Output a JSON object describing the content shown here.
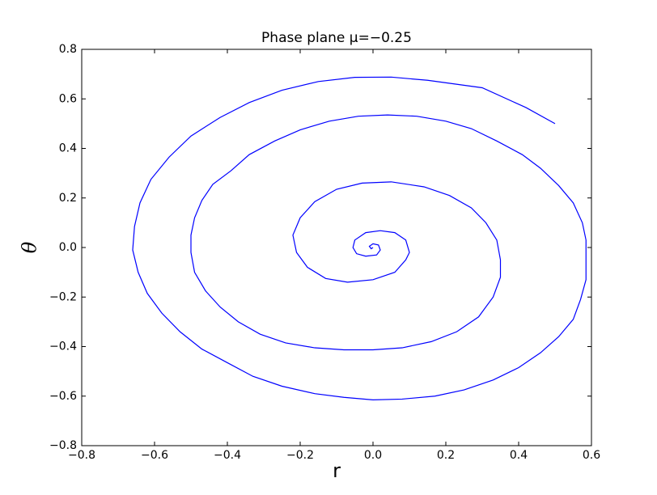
{
  "chart_data": {
    "type": "line",
    "title": "Phase plane μ=−0.25",
    "x_label": "r",
    "y_label": "θ",
    "color": "#0000ff",
    "xlim": [
      -0.8,
      0.6
    ],
    "ylim": [
      -0.8,
      0.8
    ],
    "xticks": [
      {
        "value": -0.8,
        "label": "−0.8"
      },
      {
        "value": -0.6,
        "label": "−0.6"
      },
      {
        "value": -0.4,
        "label": "−0.4"
      },
      {
        "value": -0.2,
        "label": "−0.2"
      },
      {
        "value": 0,
        "label": "0.0"
      },
      0.2,
      0.4,
      0.6
    ],
    "yticks": [
      {
        "value": -0.8,
        "label": "−0.8"
      },
      {
        "value": -0.6,
        "label": "−0.6"
      },
      {
        "value": -0.4,
        "label": "−0.4"
      },
      {
        "value": -0.2,
        "label": "−0.2"
      },
      {
        "value": 0,
        "label": "0.0"
      },
      0.2,
      0.4,
      0.6,
      0.8
    ],
    "x": [
      0.5,
      0.42,
      0.3,
      0.15,
      0.05,
      -0.05,
      -0.15,
      -0.25,
      -0.34,
      -0.42,
      -0.5,
      -0.56,
      -0.61,
      -0.64,
      -0.655,
      -0.66,
      -0.645,
      -0.62,
      -0.58,
      -0.53,
      -0.47,
      -0.4,
      -0.33,
      -0.25,
      -0.16,
      -0.08,
      0.0,
      0.08,
      0.17,
      0.25,
      0.33,
      0.4,
      0.46,
      0.51,
      0.55,
      0.57,
      0.585,
      0.585,
      0.585,
      0.575,
      0.55,
      0.51,
      0.46,
      0.41,
      0.34,
      0.27,
      0.2,
      0.12,
      0.04,
      -0.04,
      -0.12,
      -0.2,
      -0.27,
      -0.34,
      -0.39,
      -0.44,
      -0.47,
      -0.49,
      -0.5,
      -0.5,
      -0.49,
      -0.46,
      -0.42,
      -0.37,
      -0.31,
      -0.24,
      -0.16,
      -0.08,
      0.0,
      0.08,
      0.16,
      0.23,
      0.29,
      0.33,
      0.35,
      0.35,
      0.34,
      0.31,
      0.27,
      0.21,
      0.14,
      0.05,
      -0.03,
      -0.1,
      -0.16,
      -0.2,
      -0.22,
      -0.21,
      -0.18,
      -0.13,
      -0.07,
      0.0,
      0.06,
      0.09,
      0.1,
      0.09,
      0.06,
      0.02,
      -0.02,
      -0.05,
      -0.055,
      -0.045,
      -0.02,
      0.01,
      0.02,
      0.015,
      0.0,
      -0.01,
      -0.005,
      0.0
    ],
    "values": [
      0.5,
      0.565,
      0.645,
      0.675,
      0.688,
      0.687,
      0.67,
      0.635,
      0.585,
      0.525,
      0.45,
      0.365,
      0.275,
      0.18,
      0.085,
      -0.01,
      -0.1,
      -0.185,
      -0.265,
      -0.34,
      -0.41,
      -0.465,
      -0.52,
      -0.56,
      -0.59,
      -0.605,
      -0.615,
      -0.612,
      -0.6,
      -0.575,
      -0.535,
      -0.485,
      -0.425,
      -0.36,
      -0.29,
      -0.21,
      -0.13,
      -0.05,
      0.03,
      0.1,
      0.18,
      0.25,
      0.32,
      0.375,
      0.43,
      0.48,
      0.51,
      0.53,
      0.535,
      0.53,
      0.51,
      0.475,
      0.43,
      0.375,
      0.31,
      0.255,
      0.19,
      0.12,
      0.05,
      -0.02,
      -0.1,
      -0.175,
      -0.24,
      -0.3,
      -0.35,
      -0.385,
      -0.405,
      -0.413,
      -0.413,
      -0.405,
      -0.38,
      -0.34,
      -0.28,
      -0.2,
      -0.12,
      -0.05,
      0.03,
      0.1,
      0.16,
      0.21,
      0.245,
      0.265,
      0.26,
      0.235,
      0.185,
      0.12,
      0.05,
      -0.02,
      -0.08,
      -0.125,
      -0.14,
      -0.13,
      -0.1,
      -0.05,
      -0.02,
      0.03,
      0.06,
      0.068,
      0.06,
      0.03,
      0.0,
      -0.025,
      -0.035,
      -0.03,
      -0.01,
      0.01,
      0.015,
      0.005,
      -0.005,
      0.0
    ]
  }
}
